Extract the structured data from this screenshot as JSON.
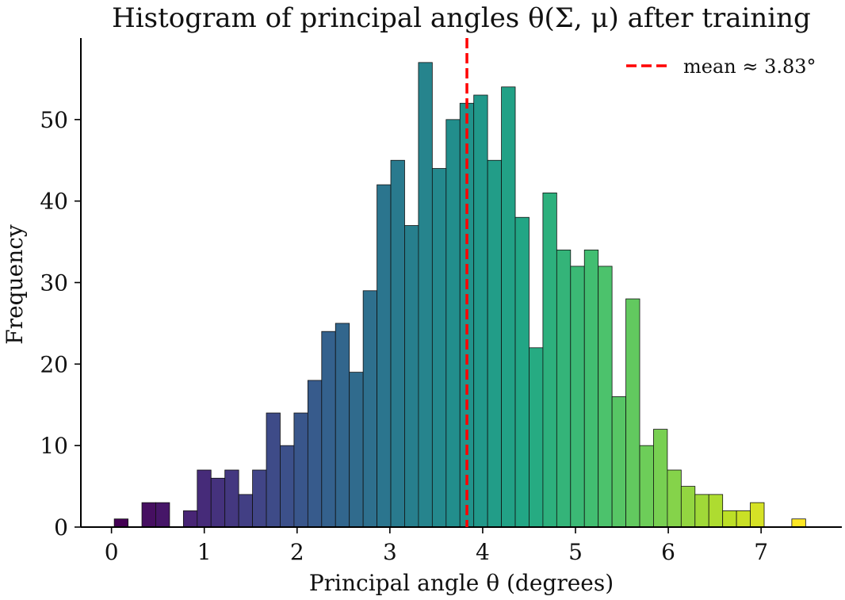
{
  "chart_data": {
    "type": "bar",
    "title": "Histogram of principal angles θ(Σ, μ) after training",
    "xlabel": "Principal angle θ (degrees)",
    "ylabel": "Frequency",
    "xlim": [
      -0.33,
      7.87
    ],
    "ylim": [
      0,
      60
    ],
    "xticks": [
      0,
      1,
      2,
      3,
      4,
      5,
      6,
      7
    ],
    "yticks": [
      0,
      10,
      20,
      30,
      40,
      50
    ],
    "grid": false,
    "legend_position": "top-right",
    "colormap": "viridis",
    "bin_start": 0.03,
    "bin_width": 0.149,
    "counts": [
      1,
      0,
      3,
      3,
      0,
      2,
      7,
      6,
      7,
      4,
      7,
      14,
      10,
      14,
      18,
      24,
      25,
      19,
      29,
      42,
      45,
      37,
      57,
      44,
      50,
      52,
      53,
      45,
      54,
      38,
      22,
      41,
      34,
      32,
      34,
      32,
      16,
      28,
      10,
      12,
      7,
      5,
      4,
      4,
      2,
      2,
      3,
      0,
      0,
      1
    ],
    "mean_line": {
      "x": 3.83,
      "label": "mean ≈ 3.83°",
      "color": "#ff0000"
    }
  }
}
